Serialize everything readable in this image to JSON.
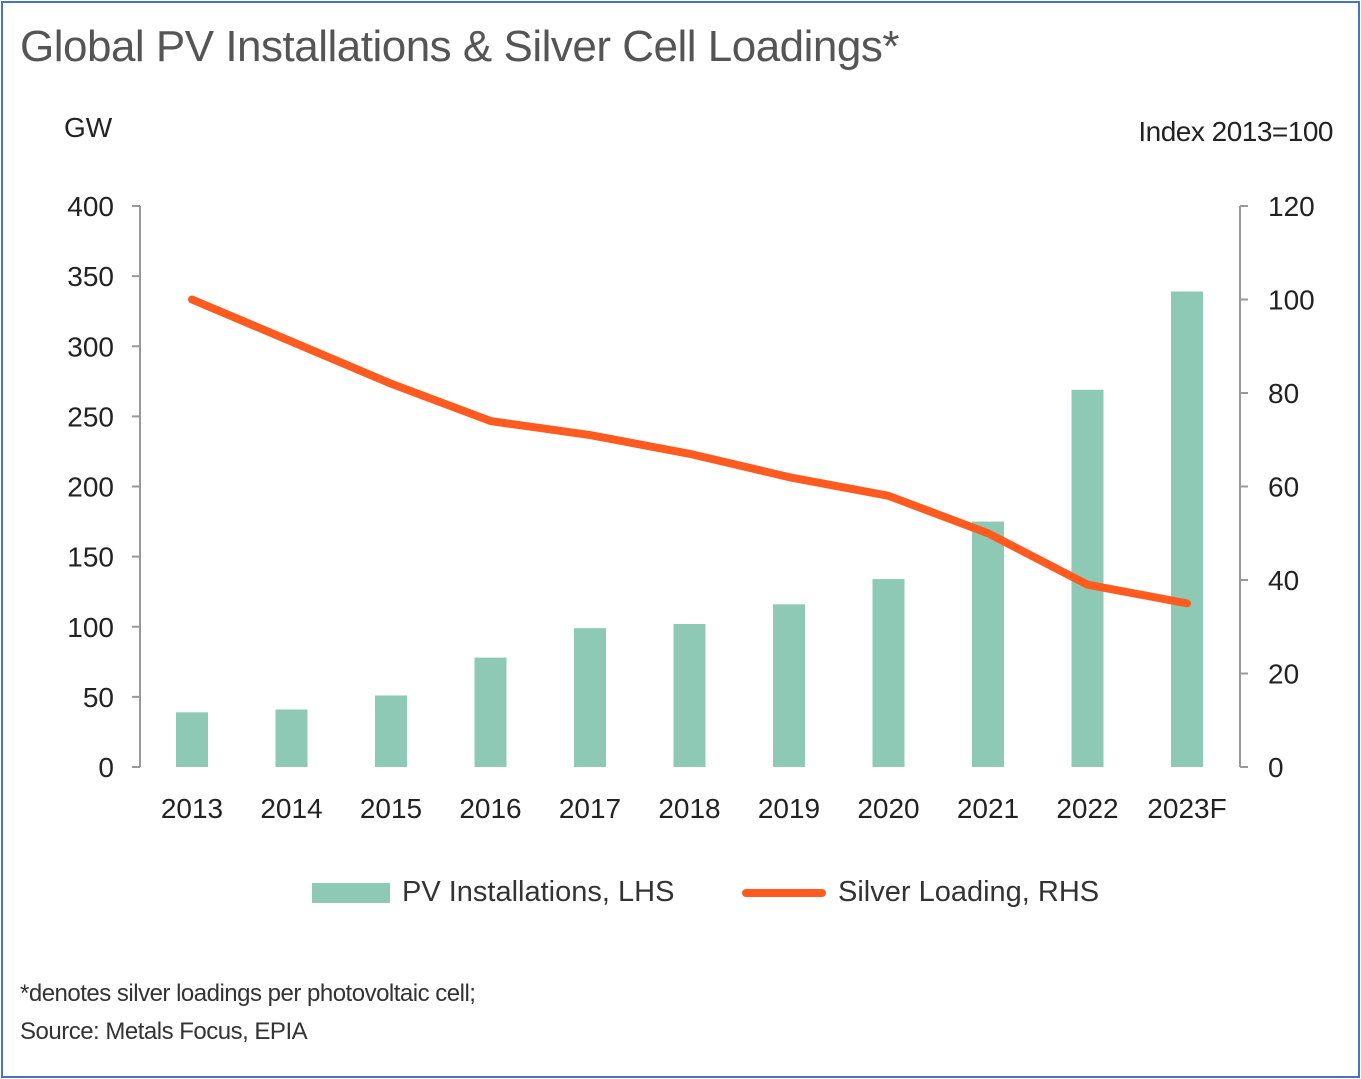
{
  "chart_data": {
    "type": "bar+line",
    "title": "Global PV Installations & Silver Cell Loadings*",
    "ylabel_left": "GW",
    "ylabel_right": "Index 2013=100",
    "categories": [
      "2013",
      "2014",
      "2015",
      "2016",
      "2017",
      "2018",
      "2019",
      "2020",
      "2021",
      "2022",
      "2023F"
    ],
    "series": [
      {
        "name": "PV Installations, LHS",
        "type": "bar",
        "axis": "left",
        "color": "#8dc9b4",
        "values": [
          39,
          41,
          51,
          78,
          99,
          102,
          116,
          134,
          175,
          269,
          339
        ]
      },
      {
        "name": "Silver Loading, RHS",
        "type": "line",
        "axis": "right",
        "color": "#ff5a1f",
        "values": [
          100,
          91,
          82,
          74,
          71,
          67,
          62,
          58,
          50,
          39,
          35
        ]
      }
    ],
    "ylim_left": [
      0,
      400
    ],
    "yticks_left": [
      "0",
      "50",
      "100",
      "150",
      "200",
      "250",
      "300",
      "350",
      "400"
    ],
    "ylim_right": [
      0,
      120
    ],
    "yticks_right": [
      "0",
      "20",
      "40",
      "60",
      "80",
      "100",
      "120"
    ],
    "grid": false,
    "legend": "bottom",
    "footnote": "*denotes silver loadings per photovoltaic cell;",
    "source": "Source: Metals Focus, EPIA"
  }
}
